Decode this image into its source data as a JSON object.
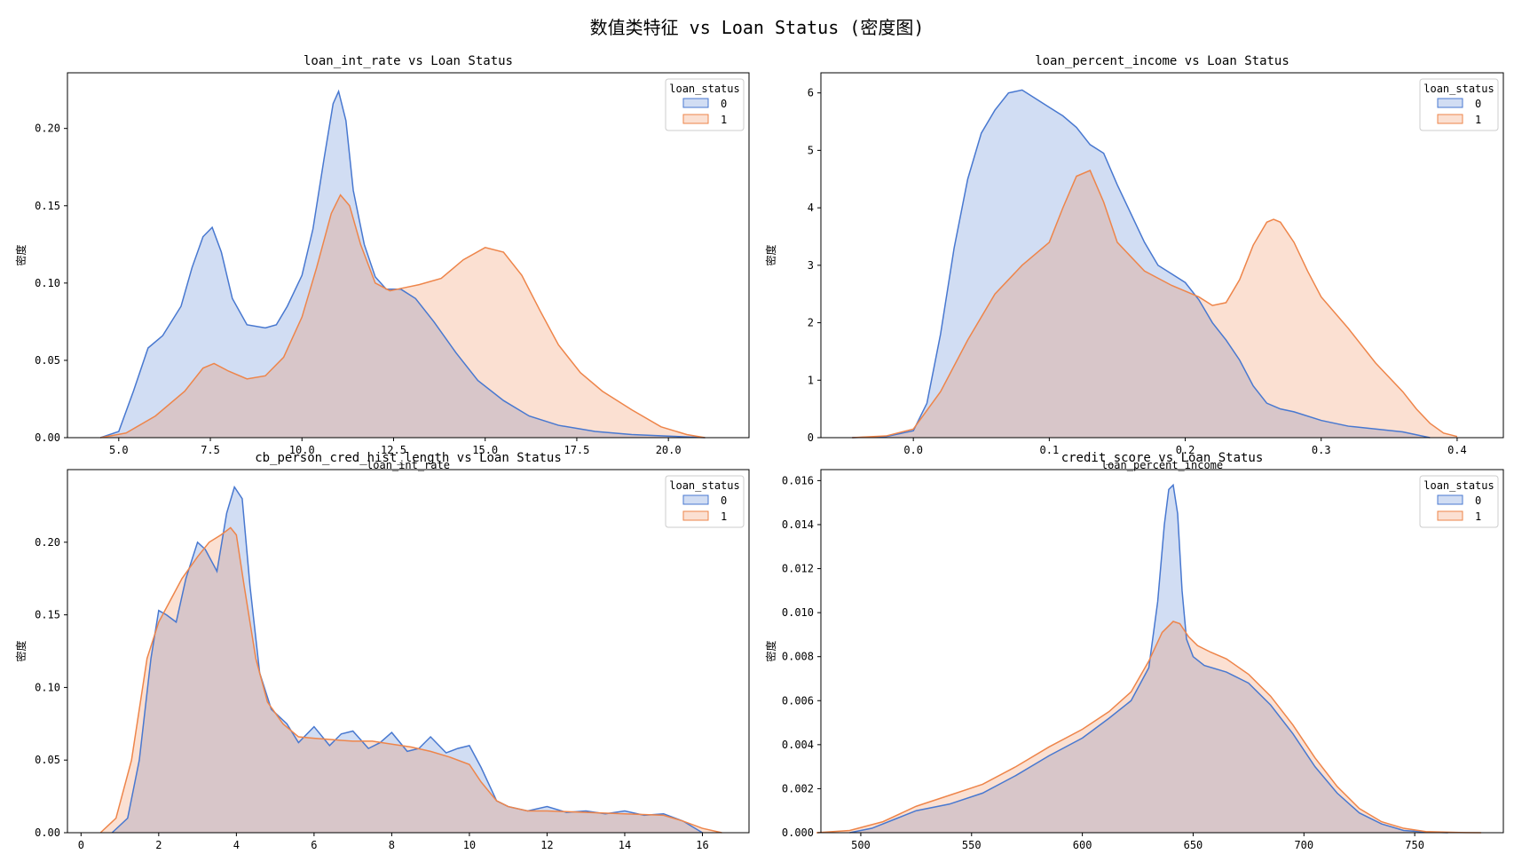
{
  "title": "数值类特征 vs Loan Status (密度图)",
  "colors": {
    "series0": "#4878d0",
    "series1": "#ee854a"
  },
  "chart_data": [
    {
      "type": "area",
      "title": "loan_int_rate vs Loan Status",
      "xlabel": "loan_int_rate",
      "ylabel": "密度",
      "xlim": [
        3.6,
        22.2
      ],
      "ylim": [
        0,
        0.236
      ],
      "xticks": [
        5.0,
        7.5,
        10.0,
        12.5,
        15.0,
        17.5,
        20.0
      ],
      "xtick_labels": [
        "5.0",
        "7.5",
        "10.0",
        "12.5",
        "15.0",
        "17.5",
        "20.0"
      ],
      "yticks": [
        0.0,
        0.05,
        0.1,
        0.15,
        0.2
      ],
      "ytick_labels": [
        "0.00",
        "0.05",
        "0.10",
        "0.15",
        "0.20"
      ],
      "legend": {
        "title": "loan_status",
        "placement": "top-right"
      },
      "series": [
        {
          "name": "0",
          "x": [
            4.5,
            5.0,
            5.4,
            5.8,
            6.2,
            6.7,
            7.0,
            7.3,
            7.55,
            7.8,
            8.1,
            8.5,
            9.0,
            9.3,
            9.6,
            10.0,
            10.3,
            10.6,
            10.85,
            11.0,
            11.2,
            11.4,
            11.7,
            12.0,
            12.3,
            12.7,
            13.1,
            13.6,
            14.2,
            14.8,
            15.5,
            16.2,
            17.0,
            18.0,
            19.0,
            20.0,
            21.0
          ],
          "y": [
            0.0,
            0.004,
            0.03,
            0.058,
            0.066,
            0.085,
            0.11,
            0.13,
            0.136,
            0.12,
            0.09,
            0.073,
            0.071,
            0.073,
            0.085,
            0.105,
            0.135,
            0.18,
            0.216,
            0.224,
            0.205,
            0.16,
            0.125,
            0.104,
            0.096,
            0.096,
            0.09,
            0.075,
            0.055,
            0.037,
            0.024,
            0.014,
            0.008,
            0.004,
            0.002,
            0.001,
            0.0
          ]
        },
        {
          "name": "1",
          "x": [
            4.5,
            5.2,
            6.0,
            6.8,
            7.3,
            7.6,
            8.0,
            8.5,
            9.0,
            9.5,
            10.0,
            10.4,
            10.8,
            11.05,
            11.3,
            11.6,
            12.0,
            12.4,
            12.8,
            13.2,
            13.8,
            14.4,
            15.0,
            15.5,
            16.0,
            16.5,
            17.0,
            17.6,
            18.2,
            19.0,
            19.8,
            20.5,
            21.0
          ],
          "y": [
            0.0,
            0.003,
            0.014,
            0.03,
            0.045,
            0.048,
            0.043,
            0.038,
            0.04,
            0.052,
            0.078,
            0.11,
            0.145,
            0.157,
            0.15,
            0.125,
            0.1,
            0.095,
            0.097,
            0.099,
            0.103,
            0.115,
            0.123,
            0.12,
            0.105,
            0.082,
            0.06,
            0.042,
            0.03,
            0.018,
            0.007,
            0.002,
            0.0
          ]
        }
      ]
    },
    {
      "type": "area",
      "title": "loan_percent_income vs Loan Status",
      "xlabel": "loan_percent_income",
      "ylabel": "密度",
      "xlim": [
        -0.068,
        0.434
      ],
      "ylim": [
        0,
        6.35
      ],
      "xticks": [
        0.0,
        0.1,
        0.2,
        0.3,
        0.4
      ],
      "xtick_labels": [
        "0.0",
        "0.1",
        "0.2",
        "0.3",
        "0.4"
      ],
      "yticks": [
        0,
        1,
        2,
        3,
        4,
        5,
        6
      ],
      "ytick_labels": [
        "0",
        "1",
        "2",
        "3",
        "4",
        "5",
        "6"
      ],
      "legend": {
        "title": "loan_status",
        "placement": "top-right"
      },
      "series": [
        {
          "name": "0",
          "x": [
            -0.045,
            -0.02,
            0.0,
            0.01,
            0.02,
            0.03,
            0.04,
            0.05,
            0.06,
            0.07,
            0.08,
            0.09,
            0.1,
            0.11,
            0.12,
            0.13,
            0.14,
            0.15,
            0.16,
            0.17,
            0.18,
            0.19,
            0.2,
            0.21,
            0.22,
            0.23,
            0.24,
            0.25,
            0.26,
            0.27,
            0.28,
            0.3,
            0.32,
            0.34,
            0.36,
            0.37,
            0.38
          ],
          "y": [
            0.0,
            0.02,
            0.12,
            0.6,
            1.8,
            3.3,
            4.5,
            5.3,
            5.7,
            6.0,
            6.05,
            5.9,
            5.75,
            5.6,
            5.4,
            5.1,
            4.95,
            4.4,
            3.9,
            3.4,
            3.0,
            2.85,
            2.7,
            2.4,
            2.0,
            1.7,
            1.35,
            0.9,
            0.6,
            0.5,
            0.45,
            0.3,
            0.2,
            0.15,
            0.1,
            0.05,
            0.0
          ]
        },
        {
          "name": "1",
          "x": [
            -0.045,
            -0.02,
            0.0,
            0.02,
            0.04,
            0.06,
            0.08,
            0.1,
            0.11,
            0.12,
            0.13,
            0.14,
            0.15,
            0.17,
            0.19,
            0.21,
            0.22,
            0.23,
            0.24,
            0.25,
            0.26,
            0.265,
            0.27,
            0.28,
            0.29,
            0.3,
            0.32,
            0.34,
            0.36,
            0.37,
            0.38,
            0.39,
            0.4
          ],
          "y": [
            0.0,
            0.03,
            0.15,
            0.8,
            1.7,
            2.5,
            3.0,
            3.4,
            4.0,
            4.55,
            4.65,
            4.1,
            3.4,
            2.9,
            2.65,
            2.45,
            2.3,
            2.35,
            2.75,
            3.35,
            3.75,
            3.8,
            3.75,
            3.4,
            2.9,
            2.45,
            1.9,
            1.3,
            0.8,
            0.5,
            0.25,
            0.08,
            0.02
          ]
        }
      ]
    },
    {
      "type": "area",
      "title": "cb_person_cred_hist_length vs Loan Status",
      "xlabel": "cb_person_cred_hist_length",
      "ylabel": "密度",
      "xlim": [
        -0.35,
        17.2
      ],
      "ylim": [
        0,
        0.25
      ],
      "xticks": [
        0,
        2,
        4,
        6,
        8,
        10,
        12,
        14,
        16
      ],
      "xtick_labels": [
        "0",
        "2",
        "4",
        "6",
        "8",
        "10",
        "12",
        "14",
        "16"
      ],
      "yticks": [
        0.0,
        0.05,
        0.1,
        0.15,
        0.2
      ],
      "ytick_labels": [
        "0.00",
        "0.05",
        "0.10",
        "0.15",
        "0.20"
      ],
      "legend": {
        "title": "loan_status",
        "placement": "top-right"
      },
      "series": [
        {
          "name": "0",
          "x": [
            0.8,
            1.2,
            1.5,
            1.8,
            2.0,
            2.2,
            2.45,
            2.7,
            3.0,
            3.2,
            3.5,
            3.75,
            3.95,
            4.15,
            4.35,
            4.6,
            4.9,
            5.3,
            5.6,
            6.0,
            6.4,
            6.7,
            7.0,
            7.4,
            7.7,
            8.0,
            8.4,
            8.7,
            9.0,
            9.4,
            9.7,
            10.0,
            10.3,
            10.7,
            11.0,
            11.5,
            12.0,
            12.5,
            13.0,
            13.5,
            14.0,
            14.5,
            15.0,
            15.5,
            16.0
          ],
          "y": [
            0.0,
            0.01,
            0.05,
            0.12,
            0.153,
            0.15,
            0.145,
            0.175,
            0.2,
            0.195,
            0.18,
            0.22,
            0.238,
            0.23,
            0.17,
            0.11,
            0.085,
            0.075,
            0.062,
            0.073,
            0.06,
            0.068,
            0.07,
            0.058,
            0.062,
            0.069,
            0.056,
            0.058,
            0.066,
            0.055,
            0.058,
            0.06,
            0.045,
            0.022,
            0.018,
            0.015,
            0.018,
            0.014,
            0.015,
            0.013,
            0.015,
            0.012,
            0.013,
            0.008,
            0.0
          ]
        },
        {
          "name": "1",
          "x": [
            0.5,
            0.9,
            1.3,
            1.7,
            2.0,
            2.3,
            2.6,
            3.0,
            3.3,
            3.6,
            3.85,
            4.0,
            4.2,
            4.5,
            4.8,
            5.2,
            5.6,
            6.0,
            6.5,
            7.0,
            7.5,
            8.0,
            8.5,
            9.0,
            9.5,
            10.0,
            10.3,
            10.7,
            11.0,
            11.5,
            12.0,
            13.0,
            14.0,
            15.0,
            15.5,
            16.0,
            16.5
          ],
          "y": [
            0.0,
            0.01,
            0.05,
            0.12,
            0.145,
            0.16,
            0.175,
            0.19,
            0.2,
            0.205,
            0.21,
            0.205,
            0.17,
            0.12,
            0.09,
            0.075,
            0.066,
            0.065,
            0.064,
            0.063,
            0.063,
            0.061,
            0.059,
            0.056,
            0.052,
            0.047,
            0.035,
            0.022,
            0.018,
            0.015,
            0.015,
            0.014,
            0.013,
            0.012,
            0.008,
            0.003,
            0.0
          ]
        }
      ]
    },
    {
      "type": "area",
      "title": "credit_score vs Loan Status",
      "xlabel": "credit_score",
      "ylabel": "密度",
      "xlim": [
        482,
        790
      ],
      "ylim": [
        0,
        0.0165
      ],
      "xticks": [
        500,
        550,
        600,
        650,
        700,
        750
      ],
      "xtick_labels": [
        "500",
        "550",
        "600",
        "650",
        "700",
        "750"
      ],
      "yticks": [
        0.0,
        0.002,
        0.004,
        0.006,
        0.008,
        0.01,
        0.012,
        0.014,
        0.016
      ],
      "ytick_labels": [
        "0.000",
        "0.002",
        "0.004",
        "0.006",
        "0.008",
        "0.010",
        "0.012",
        "0.014",
        "0.016"
      ],
      "legend": {
        "title": "loan_status",
        "placement": "top-right"
      },
      "series": [
        {
          "name": "0",
          "x": [
            495,
            505,
            515,
            525,
            540,
            555,
            570,
            585,
            600,
            612,
            622,
            630,
            634,
            637,
            639,
            641,
            643,
            645,
            647,
            650,
            655,
            665,
            675,
            685,
            695,
            705,
            715,
            725,
            735,
            745,
            755,
            765
          ],
          "y": [
            0.0,
            0.0002,
            0.0006,
            0.001,
            0.0013,
            0.0018,
            0.0026,
            0.0035,
            0.0043,
            0.0052,
            0.006,
            0.0075,
            0.0105,
            0.014,
            0.0156,
            0.0158,
            0.0145,
            0.011,
            0.0088,
            0.008,
            0.0076,
            0.0073,
            0.0068,
            0.0058,
            0.0045,
            0.003,
            0.0018,
            0.0009,
            0.0004,
            0.0001,
            3e-05,
            0.0
          ]
        },
        {
          "name": "1",
          "x": [
            480,
            495,
            510,
            525,
            540,
            555,
            570,
            585,
            600,
            612,
            622,
            630,
            636,
            641,
            644,
            648,
            652,
            658,
            665,
            675,
            685,
            695,
            705,
            715,
            725,
            735,
            745,
            755,
            770,
            780
          ],
          "y": [
            0.0,
            0.0001,
            0.0005,
            0.0012,
            0.0017,
            0.0022,
            0.003,
            0.0039,
            0.0047,
            0.0055,
            0.0064,
            0.0078,
            0.0091,
            0.0096,
            0.0095,
            0.0089,
            0.0085,
            0.0082,
            0.0079,
            0.0072,
            0.0062,
            0.0049,
            0.0034,
            0.0021,
            0.0011,
            0.0005,
            0.0002,
            5e-05,
            1e-05,
            0.0
          ]
        }
      ]
    }
  ]
}
